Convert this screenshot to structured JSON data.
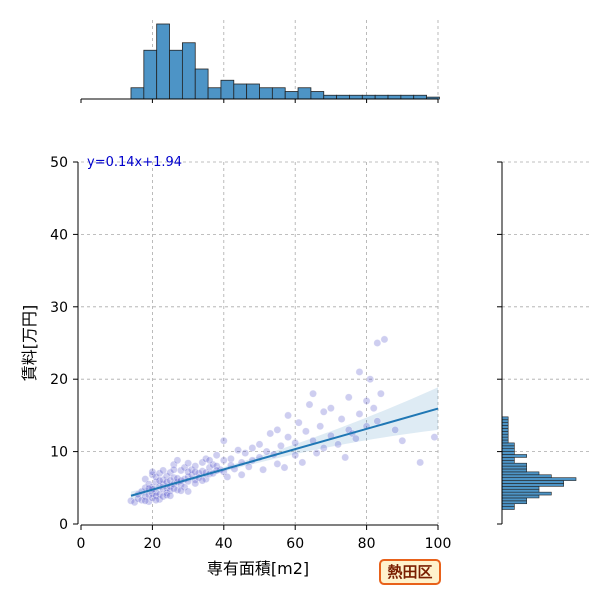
{
  "chart_data": {
    "type": "scatter",
    "title": "",
    "xlabel": "専有面積[m2]",
    "ylabel": "賃料[万円]",
    "xlim": [
      0,
      100
    ],
    "ylim": [
      0,
      50
    ],
    "xticks": [
      0,
      20,
      40,
      60,
      80,
      100
    ],
    "yticks": [
      0,
      10,
      20,
      30,
      40,
      50
    ],
    "grid": true,
    "regression": {
      "equation": "y=0.14x+1.94",
      "slope": 0.14,
      "intercept": 1.94,
      "x_range": [
        14,
        100
      ],
      "color": "#1f77b4"
    },
    "point_color": "#3b3bc4",
    "hist_color": "#4d94c6",
    "points": [
      [
        14,
        3.2
      ],
      [
        15,
        3.0
      ],
      [
        16,
        3.5
      ],
      [
        16,
        4.1
      ],
      [
        17,
        3.3
      ],
      [
        17,
        4.5
      ],
      [
        18,
        3.8
      ],
      [
        18,
        5.0
      ],
      [
        18,
        6.2
      ],
      [
        19,
        4.0
      ],
      [
        19,
        3.1
      ],
      [
        19,
        5.5
      ],
      [
        20,
        4.2
      ],
      [
        20,
        3.6
      ],
      [
        20,
        6.8
      ],
      [
        20,
        7.2
      ],
      [
        20,
        5.1
      ],
      [
        21,
        4.4
      ],
      [
        21,
        3.9
      ],
      [
        21,
        5.8
      ],
      [
        21,
        6.5
      ],
      [
        22,
        4.1
      ],
      [
        22,
        5.2
      ],
      [
        22,
        3.4
      ],
      [
        22,
        7.0
      ],
      [
        23,
        4.8
      ],
      [
        23,
        5.5
      ],
      [
        23,
        6.1
      ],
      [
        23,
        3.8
      ],
      [
        24,
        5.0
      ],
      [
        24,
        4.3
      ],
      [
        24,
        6.6
      ],
      [
        24,
        5.8
      ],
      [
        25,
        5.2
      ],
      [
        25,
        4.6
      ],
      [
        25,
        7.1
      ],
      [
        25,
        6.0
      ],
      [
        26,
        5.5
      ],
      [
        26,
        4.9
      ],
      [
        26,
        6.4
      ],
      [
        26,
        8.2
      ],
      [
        27,
        5.8
      ],
      [
        27,
        6.3
      ],
      [
        27,
        4.7
      ],
      [
        28,
        6.0
      ],
      [
        28,
        5.4
      ],
      [
        28,
        7.4
      ],
      [
        29,
        6.2
      ],
      [
        29,
        5.1
      ],
      [
        29,
        7.8
      ],
      [
        30,
        6.5
      ],
      [
        30,
        5.9
      ],
      [
        30,
        7.2
      ],
      [
        30,
        4.5
      ],
      [
        31,
        6.8
      ],
      [
        31,
        7.5
      ],
      [
        32,
        6.1
      ],
      [
        32,
        8.0
      ],
      [
        32,
        5.6
      ],
      [
        33,
        7.0
      ],
      [
        33,
        6.4
      ],
      [
        34,
        7.3
      ],
      [
        34,
        8.5
      ],
      [
        35,
        7.1
      ],
      [
        35,
        6.2
      ],
      [
        35,
        9.0
      ],
      [
        36,
        7.8
      ],
      [
        36,
        6.9
      ],
      [
        37,
        8.2
      ],
      [
        37,
        7.0
      ],
      [
        38,
        8.0
      ],
      [
        38,
        9.5
      ],
      [
        39,
        7.5
      ],
      [
        40,
        8.8
      ],
      [
        40,
        7.2
      ],
      [
        40,
        11.5
      ],
      [
        41,
        6.5
      ],
      [
        42,
        9.0
      ],
      [
        42,
        8.1
      ],
      [
        43,
        7.6
      ],
      [
        44,
        10.2
      ],
      [
        45,
        8.5
      ],
      [
        45,
        6.8
      ],
      [
        46,
        9.8
      ],
      [
        47,
        7.9
      ],
      [
        48,
        10.5
      ],
      [
        48,
        8.8
      ],
      [
        50,
        9.2
      ],
      [
        50,
        11.0
      ],
      [
        51,
        7.5
      ],
      [
        52,
        10.0
      ],
      [
        53,
        12.5
      ],
      [
        54,
        9.6
      ],
      [
        55,
        8.3
      ],
      [
        55,
        13.0
      ],
      [
        56,
        10.8
      ],
      [
        57,
        7.8
      ],
      [
        58,
        12.0
      ],
      [
        58,
        15.0
      ],
      [
        60,
        11.2
      ],
      [
        60,
        9.5
      ],
      [
        61,
        14.0
      ],
      [
        62,
        8.5
      ],
      [
        63,
        12.8
      ],
      [
        64,
        16.5
      ],
      [
        65,
        11.5
      ],
      [
        65,
        18.0
      ],
      [
        66,
        9.8
      ],
      [
        67,
        13.5
      ],
      [
        68,
        10.5
      ],
      [
        68,
        15.5
      ],
      [
        70,
        12.2
      ],
      [
        70,
        16.0
      ],
      [
        72,
        11.0
      ],
      [
        73,
        14.5
      ],
      [
        74,
        9.2
      ],
      [
        75,
        13.0
      ],
      [
        75,
        17.5
      ],
      [
        76,
        12.5
      ],
      [
        77,
        11.8
      ],
      [
        78,
        15.2
      ],
      [
        78,
        21.0
      ],
      [
        80,
        13.5
      ],
      [
        80,
        17.0
      ],
      [
        81,
        20.0
      ],
      [
        82,
        16.0
      ],
      [
        83,
        14.2
      ],
      [
        83,
        25.0
      ],
      [
        84,
        18.0
      ],
      [
        85,
        25.5
      ],
      [
        88,
        13.0
      ],
      [
        90,
        11.5
      ],
      [
        95,
        8.5
      ],
      [
        99,
        12.0
      ],
      [
        20,
        4.8
      ],
      [
        22,
        6.0
      ],
      [
        24,
        4.0
      ],
      [
        26,
        7.5
      ],
      [
        28,
        4.6
      ],
      [
        30,
        8.4
      ],
      [
        32,
        7.2
      ],
      [
        34,
        6.0
      ],
      [
        36,
        8.8
      ],
      [
        38,
        7.4
      ],
      [
        18,
        3.2
      ],
      [
        19,
        4.9
      ],
      [
        21,
        3.3
      ],
      [
        23,
        7.4
      ],
      [
        25,
        3.9
      ],
      [
        27,
        8.8
      ]
    ],
    "hist_x": {
      "bin_start": 14,
      "bin_width": 3.6,
      "counts": [
        3,
        13,
        20,
        13,
        15,
        8,
        3,
        5,
        4,
        4,
        3,
        3,
        2,
        3,
        2,
        1,
        1,
        1,
        1,
        1,
        1,
        1,
        1,
        0.5
      ]
    },
    "hist_y": {
      "bin_start": 2,
      "bin_width": 0.4,
      "counts": [
        1,
        1,
        2,
        2,
        3,
        4,
        3,
        3,
        5,
        5,
        6,
        4,
        3,
        2,
        2,
        2,
        1,
        1,
        2,
        1,
        1,
        1,
        1,
        0.5,
        0.5,
        0.5,
        0.5,
        0.5,
        0.5,
        0.5,
        0.5,
        0.5
      ]
    }
  },
  "badge": {
    "label": "熱田区"
  }
}
